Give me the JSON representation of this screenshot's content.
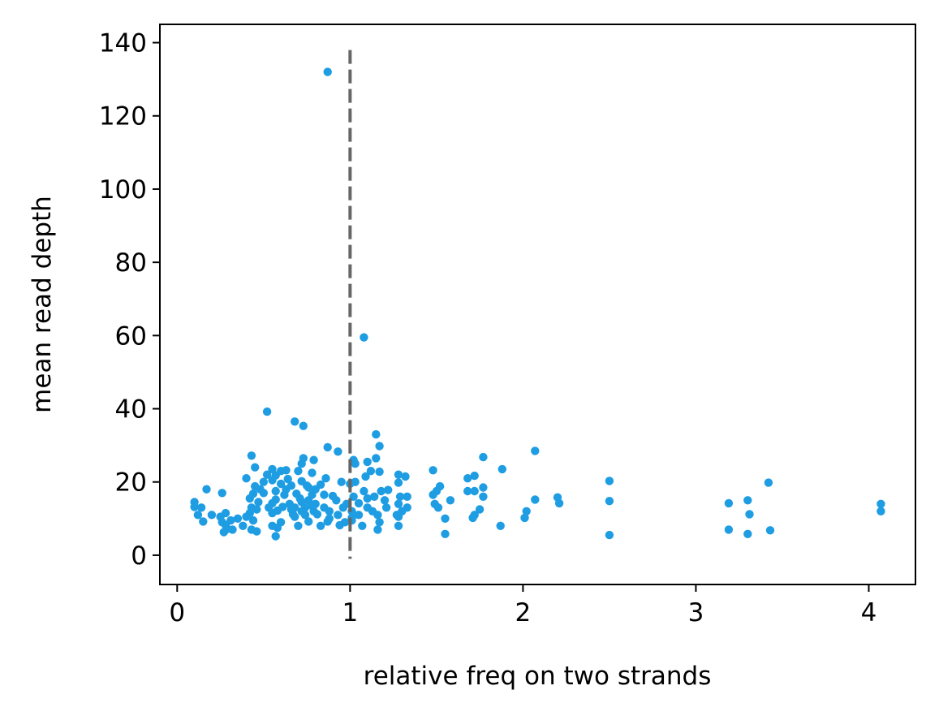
{
  "chart_data": {
    "type": "scatter",
    "title": "",
    "xlabel": "relative freq on two strands",
    "ylabel": "mean read depth",
    "xlim": [
      -0.1,
      4.27
    ],
    "ylim": [
      -8,
      145
    ],
    "xticks": [
      0,
      1,
      2,
      3,
      4
    ],
    "xtick_labels": [
      "0",
      "1",
      "2",
      "3",
      "4"
    ],
    "yticks": [
      0,
      20,
      40,
      60,
      80,
      100,
      120,
      140
    ],
    "ytick_labels": [
      "0",
      "20",
      "40",
      "60",
      "80",
      "100",
      "120",
      "140"
    ],
    "grid": false,
    "legend": "none",
    "point_color": "#1f9de3",
    "reference_line": {
      "orientation": "vertical",
      "x": 1.0,
      "y_range": [
        -1,
        138
      ],
      "style": "dashed",
      "color": "#666666"
    },
    "series": [
      {
        "points": [
          [
            0.87,
            132.0
          ],
          [
            1.08,
            59.5
          ],
          [
            0.52,
            39.2
          ],
          [
            0.68,
            36.5
          ],
          [
            0.73,
            35.3
          ],
          [
            1.15,
            33.0
          ],
          [
            1.17,
            29.8
          ],
          [
            0.87,
            29.5
          ],
          [
            2.07,
            28.5
          ],
          [
            0.93,
            28.3
          ],
          [
            0.43,
            27.2
          ],
          [
            1.77,
            26.8
          ],
          [
            0.73,
            26.5
          ],
          [
            0.79,
            26.0
          ],
          [
            1.02,
            26.0
          ],
          [
            1.15,
            26.5
          ],
          [
            1.1,
            25.5
          ],
          [
            0.72,
            25.0
          ],
          [
            1.03,
            25.0
          ],
          [
            0.45,
            24.0
          ],
          [
            0.55,
            23.5
          ],
          [
            1.88,
            23.5
          ],
          [
            0.6,
            23.0
          ],
          [
            1.48,
            23.2
          ],
          [
            0.63,
            23.2
          ],
          [
            0.7,
            23.0
          ],
          [
            1.12,
            23.0
          ],
          [
            1.17,
            22.8
          ],
          [
            0.78,
            22.5
          ],
          [
            0.52,
            22.0
          ],
          [
            0.57,
            21.8
          ],
          [
            1.28,
            22.0
          ],
          [
            1.32,
            21.5
          ],
          [
            1.72,
            21.7
          ],
          [
            0.86,
            21.0
          ],
          [
            1.09,
            21.5
          ],
          [
            0.4,
            21.0
          ],
          [
            1.68,
            21.0
          ],
          [
            0.64,
            20.8
          ],
          [
            0.55,
            20.5
          ],
          [
            0.5,
            20.0
          ],
          [
            2.5,
            20.3
          ],
          [
            3.42,
            19.8
          ],
          [
            0.72,
            20.2
          ],
          [
            0.95,
            20.0
          ],
          [
            1.0,
            19.5
          ],
          [
            1.03,
            20.0
          ],
          [
            1.28,
            19.8
          ],
          [
            0.6,
            19.5
          ],
          [
            0.66,
            19.0
          ],
          [
            0.45,
            18.8
          ],
          [
            0.75,
            19.0
          ],
          [
            0.83,
            19.3
          ],
          [
            1.52,
            18.8
          ],
          [
            1.77,
            18.5
          ],
          [
            0.17,
            18.0
          ],
          [
            0.48,
            18.0
          ],
          [
            0.57,
            17.5
          ],
          [
            0.63,
            18.0
          ],
          [
            0.76,
            18.5
          ],
          [
            0.8,
            18.0
          ],
          [
            1.08,
            17.5
          ],
          [
            1.18,
            17.5
          ],
          [
            1.22,
            17.8
          ],
          [
            1.5,
            17.5
          ],
          [
            1.68,
            17.5
          ],
          [
            1.72,
            17.5
          ],
          [
            0.26,
            17.0
          ],
          [
            0.44,
            16.8
          ],
          [
            0.5,
            17.0
          ],
          [
            0.62,
            16.5
          ],
          [
            0.69,
            16.8
          ],
          [
            0.78,
            16.5
          ],
          [
            0.85,
            16.5
          ],
          [
            0.9,
            16.2
          ],
          [
            1.02,
            16.0
          ],
          [
            1.14,
            16.0
          ],
          [
            1.29,
            16.0
          ],
          [
            1.33,
            16.0
          ],
          [
            1.48,
            16.5
          ],
          [
            1.77,
            16.0
          ],
          [
            2.2,
            15.8
          ],
          [
            1.1,
            15.5
          ],
          [
            0.42,
            15.5
          ],
          [
            0.57,
            15.2
          ],
          [
            0.71,
            15.5
          ],
          [
            0.76,
            15.0
          ],
          [
            0.92,
            15.0
          ],
          [
            1.2,
            15.0
          ],
          [
            1.58,
            15.0
          ],
          [
            2.07,
            15.2
          ],
          [
            2.5,
            14.8
          ],
          [
            3.3,
            15.0
          ],
          [
            0.1,
            14.5
          ],
          [
            0.47,
            14.5
          ],
          [
            0.55,
            14.2
          ],
          [
            0.65,
            14.0
          ],
          [
            0.72,
            14.5
          ],
          [
            0.8,
            14.0
          ],
          [
            0.98,
            14.0
          ],
          [
            1.05,
            14.2
          ],
          [
            1.28,
            14.0
          ],
          [
            1.49,
            14.0
          ],
          [
            2.21,
            14.2
          ],
          [
            3.19,
            14.2
          ],
          [
            4.07,
            14.0
          ],
          [
            0.1,
            13.2
          ],
          [
            0.14,
            13.0
          ],
          [
            0.43,
            13.0
          ],
          [
            0.53,
            13.0
          ],
          [
            0.61,
            13.2
          ],
          [
            0.68,
            13.0
          ],
          [
            0.74,
            13.0
          ],
          [
            0.78,
            13.5
          ],
          [
            0.85,
            13.0
          ],
          [
            0.96,
            13.0
          ],
          [
            1.1,
            13.0
          ],
          [
            1.21,
            13.0
          ],
          [
            1.33,
            13.0
          ],
          [
            1.51,
            13.0
          ],
          [
            1.75,
            12.5
          ],
          [
            0.46,
            12.5
          ],
          [
            0.58,
            12.2
          ],
          [
            0.66,
            12.5
          ],
          [
            0.72,
            12.0
          ],
          [
            0.79,
            12.0
          ],
          [
            0.88,
            12.0
          ],
          [
            1.01,
            12.0
          ],
          [
            1.13,
            12.0
          ],
          [
            1.3,
            12.0
          ],
          [
            2.02,
            12.0
          ],
          [
            4.07,
            12.0
          ],
          [
            0.12,
            11.0
          ],
          [
            0.2,
            11.0
          ],
          [
            0.28,
            11.5
          ],
          [
            0.42,
            11.5
          ],
          [
            0.55,
            11.5
          ],
          [
            0.67,
            11.2
          ],
          [
            0.74,
            11.0
          ],
          [
            0.81,
            11.2
          ],
          [
            0.93,
            11.0
          ],
          [
            1.05,
            11.0
          ],
          [
            1.16,
            11.0
          ],
          [
            1.27,
            11.0
          ],
          [
            1.72,
            11.0
          ],
          [
            3.31,
            11.2
          ],
          [
            0.25,
            10.5
          ],
          [
            0.35,
            10.0
          ],
          [
            0.4,
            10.5
          ],
          [
            0.68,
            10.5
          ],
          [
            0.88,
            10.0
          ],
          [
            1.01,
            10.2
          ],
          [
            1.28,
            10.5
          ],
          [
            1.55,
            10.0
          ],
          [
            1.71,
            10.2
          ],
          [
            2.01,
            10.2
          ],
          [
            0.15,
            9.2
          ],
          [
            0.26,
            9.0
          ],
          [
            0.31,
            9.5
          ],
          [
            0.44,
            9.5
          ],
          [
            0.6,
            9.0
          ],
          [
            0.76,
            9.2
          ],
          [
            0.87,
            9.2
          ],
          [
            0.97,
            9.0
          ],
          [
            1.01,
            9.5
          ],
          [
            1.17,
            9.0
          ],
          [
            0.28,
            8.2
          ],
          [
            0.38,
            8.0
          ],
          [
            0.55,
            8.0
          ],
          [
            0.7,
            8.0
          ],
          [
            0.83,
            8.0
          ],
          [
            0.94,
            8.2
          ],
          [
            1.07,
            8.0
          ],
          [
            1.28,
            8.0
          ],
          [
            1.87,
            8.0
          ],
          [
            0.29,
            7.2
          ],
          [
            0.32,
            7.0
          ],
          [
            0.43,
            7.0
          ],
          [
            0.58,
            7.5
          ],
          [
            1.16,
            7.0
          ],
          [
            3.19,
            7.0
          ],
          [
            3.43,
            6.8
          ],
          [
            0.27,
            6.3
          ],
          [
            0.46,
            6.5
          ],
          [
            1.55,
            5.8
          ],
          [
            2.5,
            5.5
          ],
          [
            3.3,
            5.8
          ],
          [
            0.57,
            5.2
          ]
        ]
      }
    ]
  }
}
